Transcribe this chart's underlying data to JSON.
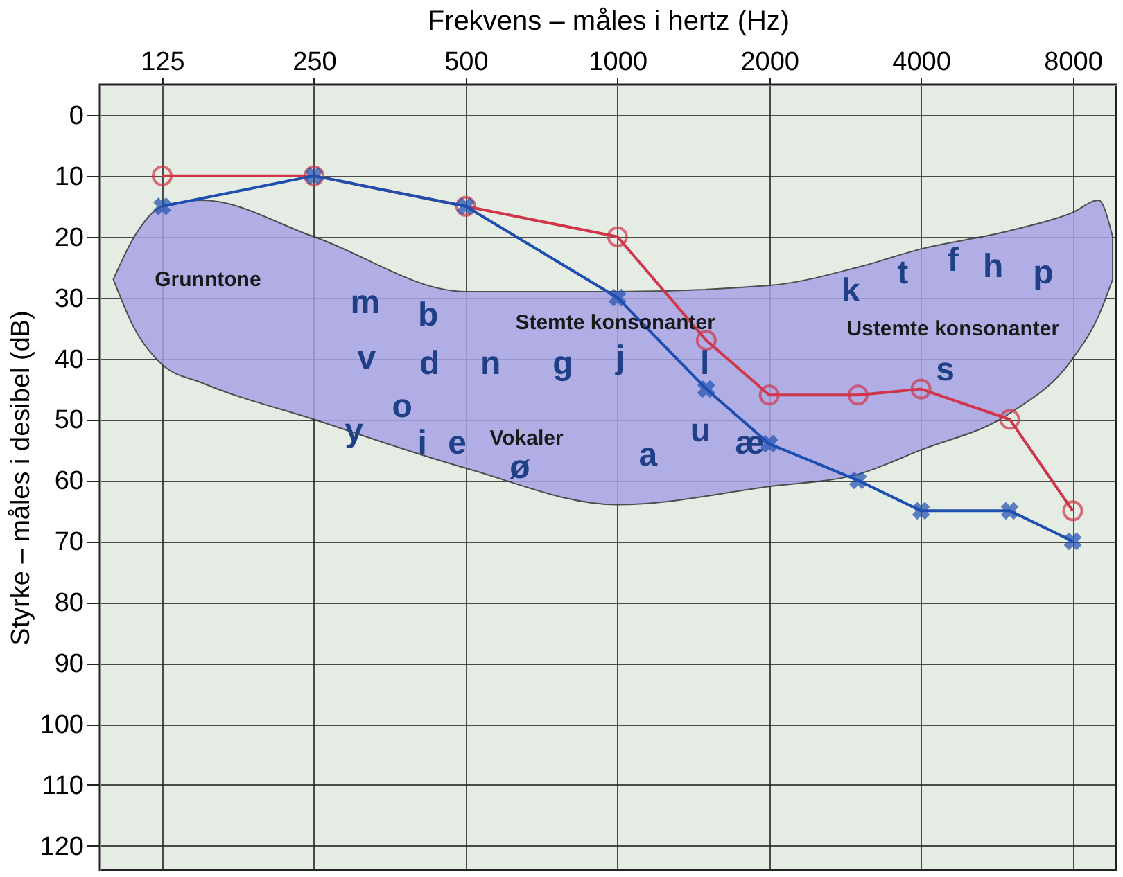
{
  "chart_data": {
    "type": "line",
    "xlabel": "Frekvens – måles i hertz (Hz)",
    "ylabel": "Styrke – måles i desibel (dB)",
    "x": [
      125,
      250,
      500,
      1000,
      1500,
      2000,
      3000,
      4000,
      6000,
      8000
    ],
    "series": [
      {
        "type": "area",
        "color": "#a7a4e6",
        "x": [
          100,
          110,
          125,
          150,
          250,
          500,
          1000,
          2000,
          3000,
          4000,
          6000,
          8000,
          9000,
          9600
        ],
        "values": [
          null,
          null,
          null,
          null,
          null,
          null,
          null,
          null,
          null,
          null,
          null,
          null,
          null,
          null
        ],
        "upper": [
          27,
          20,
          15,
          14,
          20,
          29,
          29,
          28,
          25,
          22,
          19,
          16,
          14,
          20
        ],
        "lower": [
          27,
          35,
          41,
          44,
          50,
          58,
          64,
          61,
          59,
          55,
          49,
          40,
          33,
          27
        ]
      },
      {
        "color": "#d0354a",
        "marker": "circle",
        "values": [
          10,
          10,
          15,
          20,
          37,
          46,
          46,
          45,
          50,
          65
        ]
      },
      {
        "color": "#1e4fb0",
        "marker": "cross",
        "values": [
          15,
          10,
          15,
          30,
          45,
          54,
          60,
          65,
          65,
          70
        ]
      }
    ],
    "log": "x",
    "xlim": [
      94,
      9750
    ],
    "xticks": [
      125,
      250,
      500,
      1000,
      2000,
      4000,
      8000
    ],
    "ylim": [
      124,
      -5
    ],
    "yticks": [
      0,
      10,
      20,
      30,
      40,
      50,
      60,
      70,
      80,
      90,
      100,
      110,
      120
    ],
    "grid": true,
    "annotations": [
      "Grunntone",
      "Stemte konsonanter",
      "Ustemte konsonanter",
      "Vokaler",
      "m",
      "b",
      "v",
      "d",
      "n",
      "g",
      "j",
      "l",
      "k",
      "t",
      "f",
      "h",
      "p",
      "s",
      "y",
      "o",
      "i",
      "e",
      "ø",
      "a",
      "u",
      "æ"
    ]
  }
}
